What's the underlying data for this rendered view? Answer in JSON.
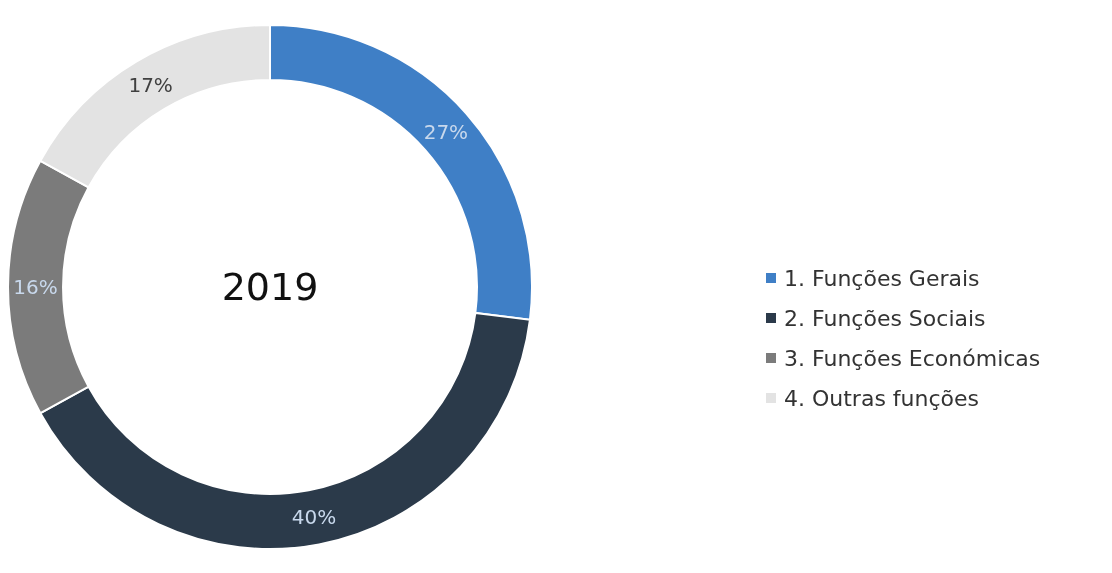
{
  "chart_data": {
    "type": "donut",
    "title": "2019",
    "categories": [
      "1. Funções Gerais",
      "2. Funções Sociais",
      "3. Funções Económicas",
      "4. Outras funções"
    ],
    "values": [
      27,
      40,
      16,
      17
    ],
    "value_labels": [
      "27%",
      "40%",
      "16%",
      "17%"
    ],
    "colors": [
      "#3f7fc6",
      "#2b3a4a",
      "#7b7b7b",
      "#e3e3e3"
    ],
    "legend": "right"
  }
}
